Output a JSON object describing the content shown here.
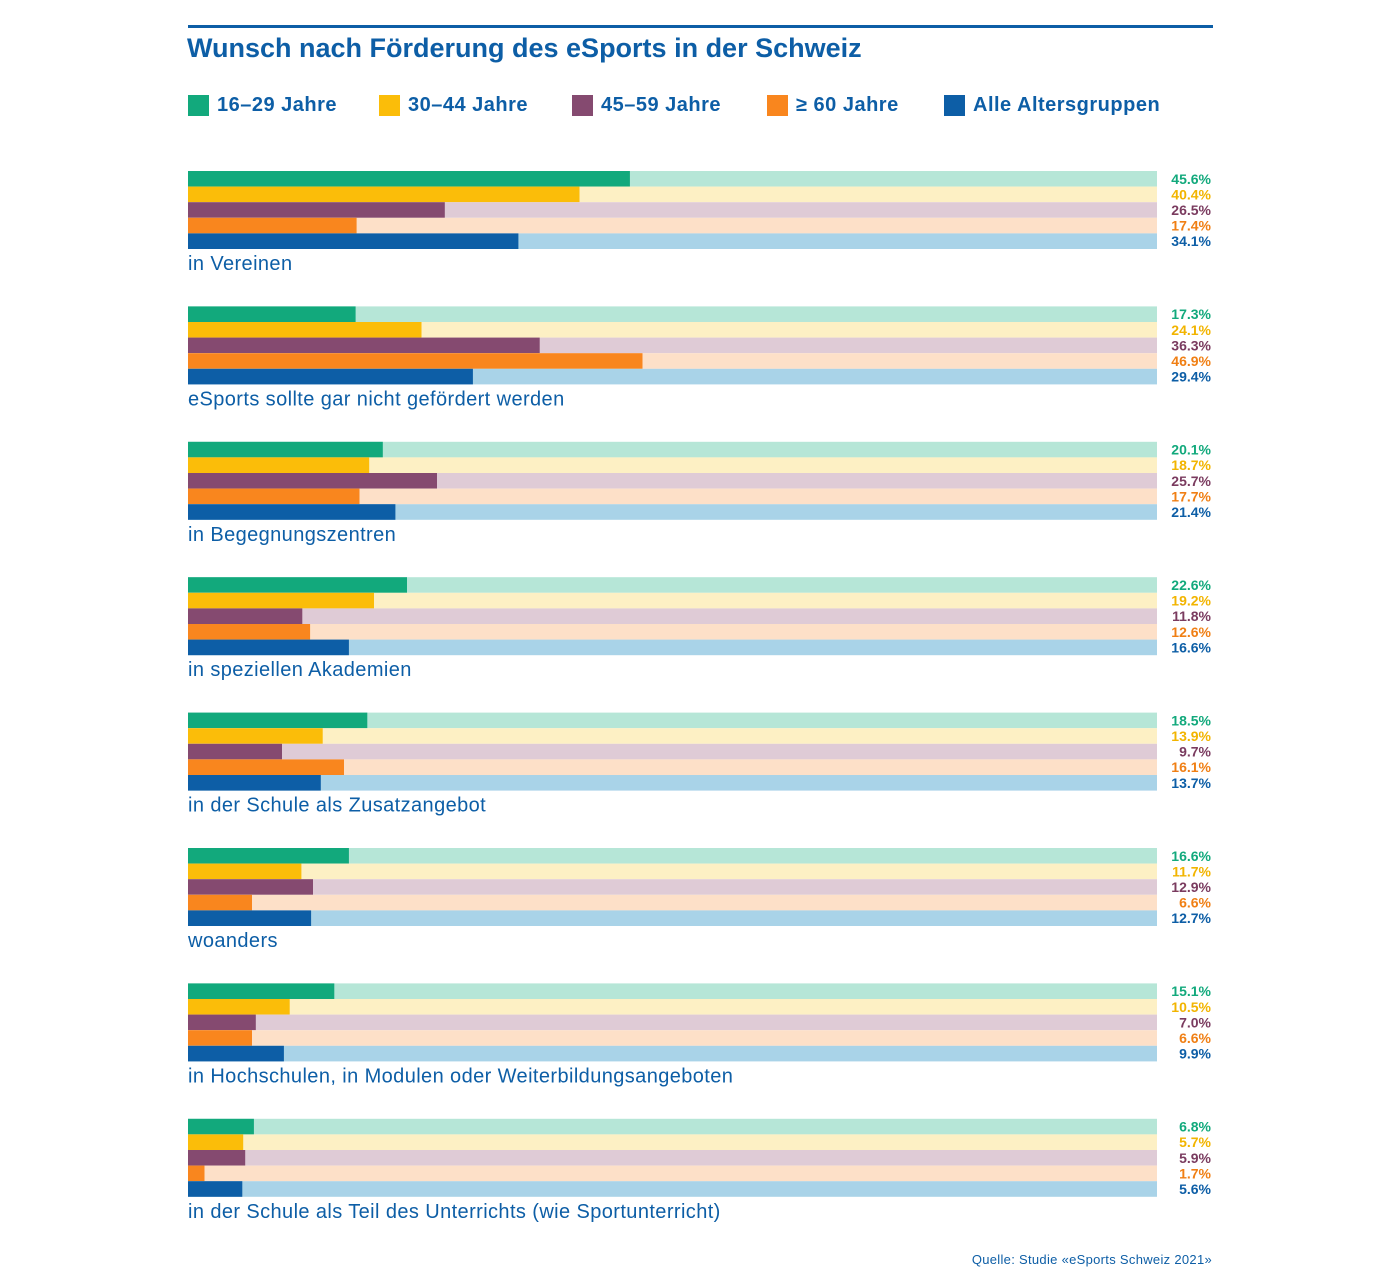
{
  "title": "Wunsch nach Förderung des eSports in der Schweiz",
  "source": "Quelle: Studie «eSports Schweiz 2021»",
  "legend": [
    {
      "label": "16–29 Jahre",
      "color": "#12a97c"
    },
    {
      "label": "30–44 Jahre",
      "color": "#fbbd09"
    },
    {
      "label": "45–59 Jahre",
      "color": "#854a70"
    },
    {
      "label": "≥ 60 Jahre",
      "color": "#f9861e"
    },
    {
      "label": "Alle Altersgruppen",
      "color": "#0d5ea6"
    }
  ],
  "chart_data": {
    "type": "bar",
    "orientation": "horizontal",
    "title": "Wunsch nach Förderung des eSports in der Schweiz",
    "value_format": "percent",
    "xlim": [
      0,
      100
    ],
    "legend_position": "top",
    "grid": false,
    "categories": [
      "in Vereinen",
      "eSports sollte gar nicht gefördert werden",
      "in Begegnungszentren",
      "in speziellen Akademien",
      "in der Schule als Zusatzangebot",
      "woanders",
      "in Hochschulen, in Modulen oder Weiterbildungsangeboten",
      "in der Schule als Teil des Unterrichts (wie Sportunterricht)"
    ],
    "series": [
      {
        "name": "16–29 Jahre",
        "color": "#12a97c",
        "track_color": "#b6e6d7",
        "label_color": "#12a97c",
        "values": [
          45.6,
          17.3,
          20.1,
          22.6,
          18.5,
          16.6,
          15.1,
          6.8
        ]
      },
      {
        "name": "30–44 Jahre",
        "color": "#fbbd09",
        "track_color": "#fdf0c4",
        "label_color": "#f2b400",
        "values": [
          40.4,
          24.1,
          18.7,
          19.2,
          13.9,
          11.7,
          10.5,
          5.7
        ]
      },
      {
        "name": "45–59 Jahre",
        "color": "#854a70",
        "track_color": "#dfcbd6",
        "label_color": "#7a3b5f",
        "values": [
          26.5,
          36.3,
          25.7,
          11.8,
          9.7,
          12.9,
          7.0,
          5.9
        ]
      },
      {
        "name": "≥ 60 Jahre",
        "color": "#f9861e",
        "track_color": "#fde0c8",
        "label_color": "#f07f14",
        "values": [
          17.4,
          46.9,
          17.7,
          12.6,
          16.1,
          6.6,
          6.6,
          1.7
        ]
      },
      {
        "name": "Alle Altersgruppen",
        "color": "#0d5ea6",
        "track_color": "#a9d3e8",
        "label_color": "#0d5ea6",
        "values": [
          34.1,
          29.4,
          21.4,
          16.6,
          13.7,
          12.7,
          9.9,
          5.6
        ]
      }
    ]
  }
}
